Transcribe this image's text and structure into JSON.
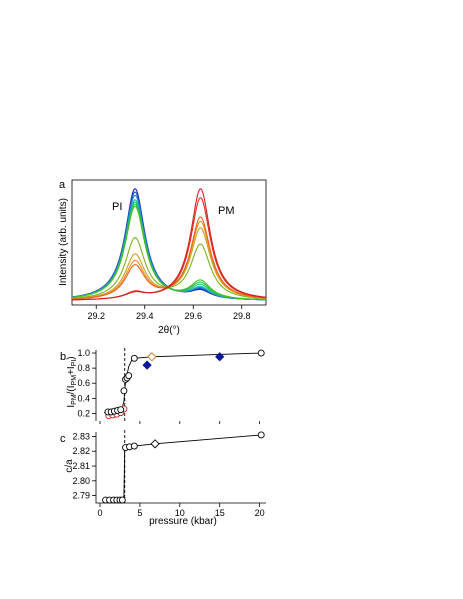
{
  "chart_data": [
    {
      "panel": "a",
      "type": "line",
      "xlabel": "2θ(°)",
      "ylabel": "Intensity (arb. units)",
      "xlim": [
        29.1,
        29.9
      ],
      "xticks": [
        "29.2",
        "29.4",
        "29.6",
        "29.8"
      ],
      "annotations": [
        "PI",
        "PM"
      ],
      "peaks": {
        "PI": {
          "center": 29.36,
          "width": 0.05
        },
        "PM": {
          "center": 29.63,
          "width": 0.05
        }
      },
      "series": [
        {
          "color": "#1f1fb4",
          "pi": 1.0,
          "pm": 0.07
        },
        {
          "color": "#1f55c8",
          "pi": 0.97,
          "pm": 0.08
        },
        {
          "color": "#1f8ccc",
          "pi": 0.94,
          "pm": 0.09
        },
        {
          "color": "#20b4b4",
          "pi": 0.9,
          "pm": 0.1
        },
        {
          "color": "#20c070",
          "pi": 0.88,
          "pm": 0.12
        },
        {
          "color": "#30c040",
          "pi": 0.86,
          "pm": 0.14
        },
        {
          "color": "#44c020",
          "pi": 0.84,
          "pm": 0.16
        },
        {
          "color": "#7ab020",
          "pi": 0.55,
          "pm": 0.49
        },
        {
          "color": "#c8a020",
          "pi": 0.4,
          "pm": 0.64
        },
        {
          "color": "#e89020",
          "pi": 0.34,
          "pm": 0.7
        },
        {
          "color": "#f06020",
          "pi": 0.3,
          "pm": 0.74
        },
        {
          "color": "#e83020",
          "pi": 0.06,
          "pm": 0.92
        },
        {
          "color": "#d02020",
          "pi": 0.05,
          "pm": 1.0
        }
      ]
    },
    {
      "panel": "b",
      "type": "scatter",
      "xlabel": "",
      "ylabel": "I_PM/(I_PM+I_PI)",
      "ylabel_parts": {
        "I1": "I",
        "s1": "PM",
        "mid": "/(I",
        "s2": "PM",
        "plus": "+I",
        "s3": "PI",
        "end": ")"
      },
      "xlim": [
        -0.5,
        20.8
      ],
      "ylim": [
        0.1,
        1.04
      ],
      "yticks": [
        "0.2",
        "0.4",
        "0.6",
        "0.8",
        "1.0"
      ],
      "dashed_x": 3.1,
      "fit_curve": {
        "x": [
          0.5,
          1.0,
          1.5,
          2.0,
          2.5,
          2.8,
          3.0,
          3.1,
          3.2,
          3.4,
          3.6,
          4.0,
          4.3,
          6.5,
          20.2
        ],
        "y": [
          0.21,
          0.21,
          0.22,
          0.23,
          0.25,
          0.28,
          0.36,
          0.5,
          0.62,
          0.72,
          0.82,
          0.91,
          0.93,
          0.95,
          1.0
        ]
      },
      "open_circles": {
        "x": [
          1.0,
          1.4,
          1.8,
          2.2,
          2.6,
          3.0,
          3.2,
          3.4,
          3.6,
          4.3,
          20.2
        ],
        "y": [
          0.22,
          0.22,
          0.23,
          0.24,
          0.25,
          0.5,
          0.65,
          0.67,
          0.7,
          0.93,
          1.0
        ]
      },
      "red_circles": {
        "x": [
          1.1,
          1.6,
          2.1,
          2.6,
          3.0
        ],
        "y": [
          0.17,
          0.18,
          0.19,
          0.21,
          0.26
        ]
      },
      "open_diamonds": {
        "x": [
          6.5
        ],
        "y": [
          0.95
        ],
        "color": "#c8781e"
      },
      "filled_diamonds": {
        "x": [
          5.9,
          15.0
        ],
        "y": [
          0.84,
          0.95
        ],
        "color": "#0a1a9a"
      }
    },
    {
      "panel": "c",
      "type": "scatter",
      "xlabel": "pressure (kbar)",
      "ylabel": "c/a",
      "xlim": [
        -0.5,
        20.8
      ],
      "ylim": [
        2.785,
        2.833
      ],
      "xticks": [
        "0",
        "5",
        "10",
        "15",
        "20"
      ],
      "yticks": [
        "2.79",
        "2.80",
        "2.81",
        "2.82",
        "2.83"
      ],
      "dashed_x": 3.1,
      "fit_curve": {
        "x": [
          0.7,
          2.8,
          3.0,
          3.1,
          3.3,
          4.3,
          6.9,
          20.2
        ],
        "y": [
          2.787,
          2.787,
          2.79,
          2.8225,
          2.8228,
          2.8235,
          2.825,
          2.831
        ]
      },
      "open_circles": {
        "x": [
          0.7,
          1.2,
          1.7,
          2.1,
          2.5,
          2.8,
          3.2,
          3.7,
          4.3,
          20.2
        ],
        "y": [
          2.787,
          2.787,
          2.787,
          2.787,
          2.787,
          2.787,
          2.8225,
          2.823,
          2.8235,
          2.831
        ]
      },
      "open_diamonds": {
        "x": [
          6.9
        ],
        "y": [
          2.825
        ],
        "color": "#000000"
      }
    }
  ]
}
